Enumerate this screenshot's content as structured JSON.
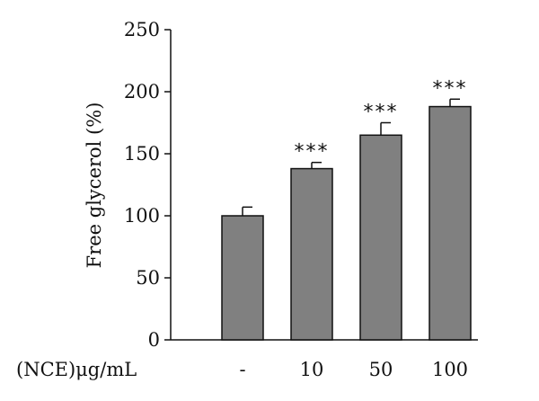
{
  "chart_data": {
    "type": "bar",
    "title": "",
    "xlabel": "(NCE)μg/mL",
    "ylabel": "Free glycerol (%)",
    "categories": [
      "-",
      "10",
      "50",
      "100"
    ],
    "values": [
      100,
      138,
      165,
      188
    ],
    "errors": [
      7,
      5,
      10,
      6
    ],
    "significance": [
      "",
      "***",
      "***",
      "***"
    ],
    "ylim": [
      0,
      250
    ],
    "yticks": [
      0,
      50,
      100,
      150,
      200,
      250
    ],
    "grid": false,
    "legend": "none",
    "bar_color": "#808080",
    "edge_color": "#111111"
  }
}
